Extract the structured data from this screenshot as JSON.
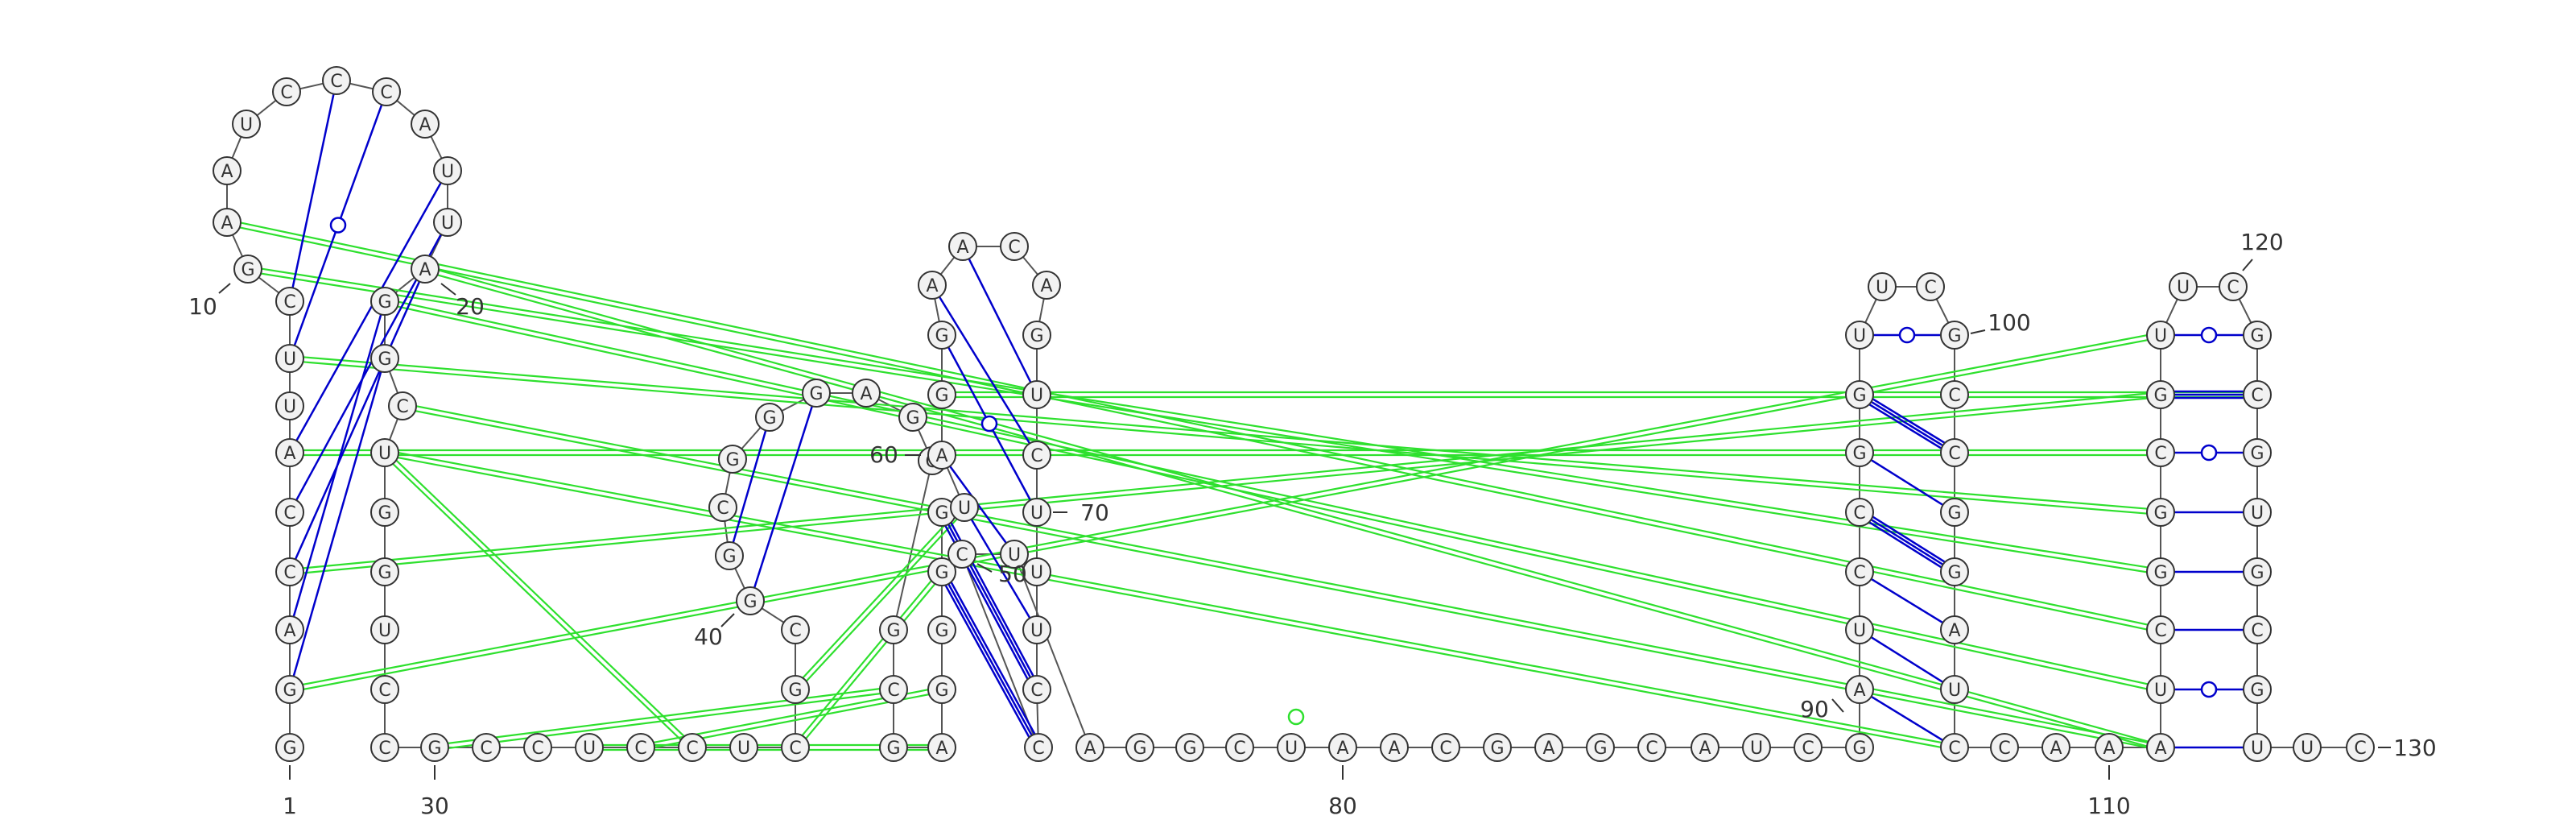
{
  "diagram": {
    "type": "rna-secondary-structure",
    "colors": {
      "background": "#ffffff",
      "nucleotide_stroke": "#333333",
      "nucleotide_fill": "#f2f2f2",
      "backbone": "#555555",
      "canonical_pair": "#0000cc",
      "gu_pair": "#0000cc",
      "tertiary_interaction": "#2ee02e",
      "number_text": "#333333"
    },
    "nucleotides": [
      {
        "id": 1,
        "base": "G"
      },
      {
        "id": 2,
        "base": "G"
      },
      {
        "id": 3,
        "base": "A"
      },
      {
        "id": 4,
        "base": "C"
      },
      {
        "id": 5,
        "base": "C"
      },
      {
        "id": 6,
        "base": "A"
      },
      {
        "id": 7,
        "base": "U"
      },
      {
        "id": 8,
        "base": "U"
      },
      {
        "id": 9,
        "base": "C"
      },
      {
        "id": 10,
        "base": "G"
      },
      {
        "id": 11,
        "base": "A"
      },
      {
        "id": 12,
        "base": "A"
      },
      {
        "id": 13,
        "base": "U"
      },
      {
        "id": 14,
        "base": "C"
      },
      {
        "id": 15,
        "base": "C"
      },
      {
        "id": 16,
        "base": "C"
      },
      {
        "id": 17,
        "base": "A"
      },
      {
        "id": 18,
        "base": "U"
      },
      {
        "id": 19,
        "base": "U"
      },
      {
        "id": 20,
        "base": "A"
      },
      {
        "id": 21,
        "base": "G"
      },
      {
        "id": 22,
        "base": "G"
      },
      {
        "id": 23,
        "base": "C"
      },
      {
        "id": 24,
        "base": "U"
      },
      {
        "id": 25,
        "base": "G"
      },
      {
        "id": 26,
        "base": "G"
      },
      {
        "id": 27,
        "base": "U"
      },
      {
        "id": 28,
        "base": "C"
      },
      {
        "id": 29,
        "base": "C"
      },
      {
        "id": 30,
        "base": "G"
      },
      {
        "id": 31,
        "base": "C"
      },
      {
        "id": 32,
        "base": "C"
      },
      {
        "id": 33,
        "base": "U"
      },
      {
        "id": 34,
        "base": "C"
      },
      {
        "id": 35,
        "base": "C"
      },
      {
        "id": 36,
        "base": "U"
      },
      {
        "id": 37,
        "base": "C"
      },
      {
        "id": 38,
        "base": "G"
      },
      {
        "id": 39,
        "base": "C"
      },
      {
        "id": 40,
        "base": "G"
      },
      {
        "id": 41,
        "base": "G"
      },
      {
        "id": 42,
        "base": "C"
      },
      {
        "id": 43,
        "base": "G"
      },
      {
        "id": 44,
        "base": "G"
      },
      {
        "id": 45,
        "base": "G"
      },
      {
        "id": 46,
        "base": "A"
      },
      {
        "id": 47,
        "base": "G"
      },
      {
        "id": 48,
        "base": "G"
      },
      {
        "id": 49,
        "base": "G"
      },
      {
        "id": 50,
        "base": "C"
      },
      {
        "id": 51,
        "base": "G"
      },
      {
        "id": 52,
        "base": "A"
      },
      {
        "id": 53,
        "base": "G"
      },
      {
        "id": 54,
        "base": "G"
      },
      {
        "id": 55,
        "base": "G"
      },
      {
        "id": 56,
        "base": "G"
      },
      {
        "id": 57,
        "base": "U"
      },
      {
        "id": 58,
        "base": "A"
      },
      {
        "id": 59,
        "base": "G"
      },
      {
        "id": 60,
        "base": "G"
      },
      {
        "id": 61,
        "base": "A"
      },
      {
        "id": 62,
        "base": "A"
      },
      {
        "id": 63,
        "base": "C"
      },
      {
        "id": 64,
        "base": "A"
      },
      {
        "id": 65,
        "base": "G"
      },
      {
        "id": 66,
        "base": "U"
      },
      {
        "id": 67,
        "base": "C"
      },
      {
        "id": 68,
        "base": "U"
      },
      {
        "id": 69,
        "base": "U"
      },
      {
        "id": 70,
        "base": "U"
      },
      {
        "id": 71,
        "base": "C"
      },
      {
        "id": 72,
        "base": "C"
      },
      {
        "id": 73,
        "base": "C"
      },
      {
        "id": 74,
        "base": "U"
      },
      {
        "id": 75,
        "base": "A"
      },
      {
        "id": 76,
        "base": "G"
      },
      {
        "id": 77,
        "base": "G"
      },
      {
        "id": 78,
        "base": "C"
      },
      {
        "id": 79,
        "base": "U"
      },
      {
        "id": 80,
        "base": "A"
      },
      {
        "id": 81,
        "base": "A"
      },
      {
        "id": 82,
        "base": "C"
      },
      {
        "id": 83,
        "base": "G"
      },
      {
        "id": 84,
        "base": "A"
      },
      {
        "id": 85,
        "base": "G"
      },
      {
        "id": 86,
        "base": "C"
      },
      {
        "id": 87,
        "base": "A"
      },
      {
        "id": 88,
        "base": "U"
      },
      {
        "id": 89,
        "base": "C"
      },
      {
        "id": 90,
        "base": "G"
      },
      {
        "id": 91,
        "base": "A"
      },
      {
        "id": 92,
        "base": "U"
      },
      {
        "id": 93,
        "base": "C"
      },
      {
        "id": 94,
        "base": "C"
      },
      {
        "id": 95,
        "base": "G"
      },
      {
        "id": 96,
        "base": "G"
      },
      {
        "id": 97,
        "base": "U"
      },
      {
        "id": 98,
        "base": "U"
      },
      {
        "id": 99,
        "base": "C"
      },
      {
        "id": 100,
        "base": "G"
      },
      {
        "id": 101,
        "base": "C"
      },
      {
        "id": 102,
        "base": "C"
      },
      {
        "id": 103,
        "base": "G"
      },
      {
        "id": 104,
        "base": "G"
      },
      {
        "id": 105,
        "base": "A"
      },
      {
        "id": 106,
        "base": "U"
      },
      {
        "id": 107,
        "base": "C"
      },
      {
        "id": 108,
        "base": "C"
      },
      {
        "id": 109,
        "base": "A"
      },
      {
        "id": 110,
        "base": "A"
      },
      {
        "id": 111,
        "base": "A"
      },
      {
        "id": 112,
        "base": "U"
      },
      {
        "id": 113,
        "base": "C"
      },
      {
        "id": 114,
        "base": "G"
      },
      {
        "id": 115,
        "base": "G"
      },
      {
        "id": 116,
        "base": "C"
      },
      {
        "id": 117,
        "base": "G"
      },
      {
        "id": 118,
        "base": "U"
      },
      {
        "id": 119,
        "base": "U"
      },
      {
        "id": 120,
        "base": "C"
      },
      {
        "id": 121,
        "base": "G"
      },
      {
        "id": 122,
        "base": "C"
      },
      {
        "id": 123,
        "base": "G"
      },
      {
        "id": 124,
        "base": "U"
      },
      {
        "id": 125,
        "base": "G"
      },
      {
        "id": 126,
        "base": "C"
      },
      {
        "id": 127,
        "base": "G"
      },
      {
        "id": 128,
        "base": "U"
      },
      {
        "id": 129,
        "base": "U"
      },
      {
        "id": 130,
        "base": "C"
      }
    ],
    "base_pairs": [
      {
        "i": 2,
        "j": 22,
        "kind": "canonical"
      },
      {
        "i": 3,
        "j": 21,
        "kind": "canonical"
      },
      {
        "i": 4,
        "j": 20,
        "kind": "canonical"
      },
      {
        "i": 5,
        "j": 19,
        "kind": "canonical"
      },
      {
        "i": 6,
        "j": 18,
        "kind": "canonical"
      },
      {
        "i": 8,
        "j": 16,
        "kind": "gu"
      },
      {
        "i": 9,
        "j": 15,
        "kind": "canonical"
      },
      {
        "i": 40,
        "j": 45,
        "kind": "canonical"
      },
      {
        "i": 41,
        "j": 44,
        "kind": "canonical"
      },
      {
        "i": 55,
        "j": 72,
        "kind": "canonical"
      },
      {
        "i": 56,
        "j": 71,
        "kind": "canonical"
      },
      {
        "i": 57,
        "j": 70,
        "kind": "canonical"
      },
      {
        "i": 60,
        "j": 68,
        "kind": "gu"
      },
      {
        "i": 61,
        "j": 67,
        "kind": "canonical"
      },
      {
        "i": 62,
        "j": 66,
        "kind": "canonical"
      },
      {
        "i": 58,
        "j": 74,
        "kind": "canonical"
      },
      {
        "i": 91,
        "j": 107,
        "kind": "canonical"
      },
      {
        "i": 92,
        "j": 106,
        "kind": "canonical"
      },
      {
        "i": 93,
        "j": 105,
        "kind": "canonical"
      },
      {
        "i": 94,
        "j": 104,
        "kind": "canonical"
      },
      {
        "i": 95,
        "j": 103,
        "kind": "canonical"
      },
      {
        "i": 96,
        "j": 102,
        "kind": "canonical"
      },
      {
        "i": 97,
        "j": 100,
        "kind": "gu"
      },
      {
        "i": 111,
        "j": 128,
        "kind": "canonical"
      },
      {
        "i": 112,
        "j": 127,
        "kind": "gu"
      },
      {
        "i": 113,
        "j": 126,
        "kind": "canonical"
      },
      {
        "i": 114,
        "j": 125,
        "kind": "canonical"
      },
      {
        "i": 115,
        "j": 124,
        "kind": "canonical"
      },
      {
        "i": 116,
        "j": 123,
        "kind": "gu"
      },
      {
        "i": 117,
        "j": 122,
        "kind": "canonical"
      },
      {
        "i": 118,
        "j": 121,
        "kind": "gu"
      }
    ],
    "tertiary": [
      {
        "from": 2,
        "to": 118
      },
      {
        "from": 4,
        "to": 117
      },
      {
        "from": 6,
        "to": 116
      },
      {
        "from": 8,
        "to": 115
      },
      {
        "from": 10,
        "to": 114
      },
      {
        "from": 11,
        "to": 113
      },
      {
        "from": 21,
        "to": 112
      },
      {
        "from": 20,
        "to": 111
      },
      {
        "from": 23,
        "to": 111
      },
      {
        "from": 24,
        "to": 35
      },
      {
        "from": 30,
        "to": 50
      },
      {
        "from": 33,
        "to": 52
      },
      {
        "from": 34,
        "to": 53
      },
      {
        "from": 37,
        "to": 55
      },
      {
        "from": 38,
        "to": 57
      },
      {
        "from": 59,
        "to": 122
      },
      {
        "from": 24,
        "to": 107
      }
    ],
    "numbers": [
      {
        "label": "1"
      },
      {
        "label": "10"
      },
      {
        "label": "20"
      },
      {
        "label": "30"
      },
      {
        "label": "40"
      },
      {
        "label": "50"
      },
      {
        "label": "60"
      },
      {
        "label": "70"
      },
      {
        "label": "80"
      },
      {
        "label": "90"
      },
      {
        "label": "100"
      },
      {
        "label": "110"
      },
      {
        "label": "120"
      },
      {
        "label": "130"
      }
    ]
  }
}
